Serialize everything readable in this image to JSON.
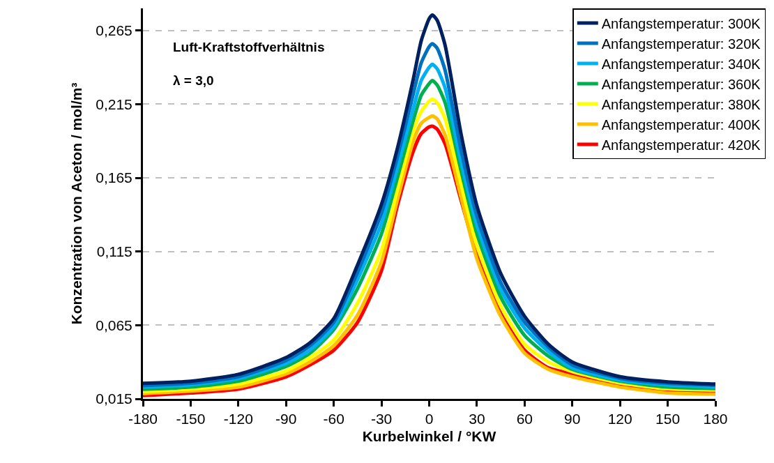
{
  "chart_data": {
    "type": "line",
    "xlabel": "Kurbelwinkel / °KW",
    "ylabel": "Konzentration von Aceton / mol/m³",
    "annotations": [
      "Luft-Kraftstoffverhältnis",
      "λ = 3,0"
    ],
    "x": [
      -180,
      -150,
      -120,
      -90,
      -75,
      -60,
      -45,
      -30,
      -20,
      -10,
      -5,
      0,
      2,
      5,
      10,
      20,
      30,
      45,
      60,
      75,
      90,
      120,
      150,
      180
    ],
    "series": [
      {
        "name": "Anfangstemperatur: 300K",
        "color": "#002060",
        "values": [
          0.0255,
          0.027,
          0.0316,
          0.043,
          0.053,
          0.0695,
          0.106,
          0.147,
          0.185,
          0.232,
          0.258,
          0.273,
          0.2755,
          0.272,
          0.255,
          0.195,
          0.146,
          0.1,
          0.071,
          0.052,
          0.04,
          0.03,
          0.0265,
          0.025
        ]
      },
      {
        "name": "Anfangstemperatur: 320K",
        "color": "#0070c0",
        "values": [
          0.024,
          0.0256,
          0.03,
          0.041,
          0.051,
          0.067,
          0.101,
          0.141,
          0.179,
          0.222,
          0.243,
          0.254,
          0.256,
          0.253,
          0.238,
          0.184,
          0.139,
          0.094,
          0.067,
          0.05,
          0.038,
          0.029,
          0.0255,
          0.0242
        ]
      },
      {
        "name": "Anfangstemperatur: 340K",
        "color": "#00b0f0",
        "values": [
          0.023,
          0.0245,
          0.0288,
          0.039,
          0.048,
          0.064,
          0.096,
          0.134,
          0.172,
          0.212,
          0.231,
          0.24,
          0.242,
          0.239,
          0.226,
          0.176,
          0.133,
          0.089,
          0.063,
          0.047,
          0.036,
          0.0278,
          0.0245,
          0.0232
        ]
      },
      {
        "name": "Anfangstemperatur: 360K",
        "color": "#00b050",
        "values": [
          0.0215,
          0.023,
          0.027,
          0.037,
          0.046,
          0.062,
          0.09,
          0.127,
          0.165,
          0.204,
          0.221,
          0.229,
          0.231,
          0.228,
          0.216,
          0.17,
          0.127,
          0.084,
          0.058,
          0.044,
          0.035,
          0.027,
          0.023,
          0.022
        ]
      },
      {
        "name": "Anfangstemperatur: 380K",
        "color": "#ffff00",
        "values": [
          0.02,
          0.0217,
          0.025,
          0.034,
          0.043,
          0.055,
          0.08,
          0.116,
          0.157,
          0.197,
          0.21,
          0.217,
          0.2185,
          0.216,
          0.205,
          0.161,
          0.119,
          0.078,
          0.052,
          0.04,
          0.0335,
          0.0258,
          0.0218,
          0.021
        ]
      },
      {
        "name": "Anfangstemperatur: 400K",
        "color": "#ffc000",
        "values": [
          0.0186,
          0.0203,
          0.023,
          0.032,
          0.04,
          0.051,
          0.072,
          0.108,
          0.15,
          0.19,
          0.202,
          0.206,
          0.207,
          0.205,
          0.194,
          0.152,
          0.11,
          0.071,
          0.046,
          0.035,
          0.03,
          0.023,
          0.019,
          0.0182
        ]
      },
      {
        "name": "Anfangstemperatur: 420K",
        "color": "#ff0000",
        "values": [
          0.0172,
          0.019,
          0.0216,
          0.03,
          0.038,
          0.048,
          0.067,
          0.102,
          0.146,
          0.183,
          0.195,
          0.1995,
          0.2,
          0.198,
          0.188,
          0.15,
          0.113,
          0.073,
          0.048,
          0.036,
          0.0318,
          0.0245,
          0.0203,
          0.0195
        ]
      }
    ],
    "xlim": [
      -180,
      180
    ],
    "xticks": [
      -180,
      -150,
      -120,
      -90,
      -60,
      -30,
      0,
      30,
      60,
      90,
      120,
      150,
      180
    ],
    "ylim": [
      0.015,
      0.28
    ],
    "yticks": [
      {
        "value": 0.015,
        "label": "0,015"
      },
      {
        "value": 0.065,
        "label": "0,065"
      },
      {
        "value": 0.115,
        "label": "0,115"
      },
      {
        "value": 0.165,
        "label": "0,165"
      },
      {
        "value": 0.215,
        "label": "0,215"
      },
      {
        "value": 0.265,
        "label": "0,265"
      }
    ],
    "grid": "y",
    "legend": "top right",
    "marker": "none",
    "line_style": "solid"
  }
}
